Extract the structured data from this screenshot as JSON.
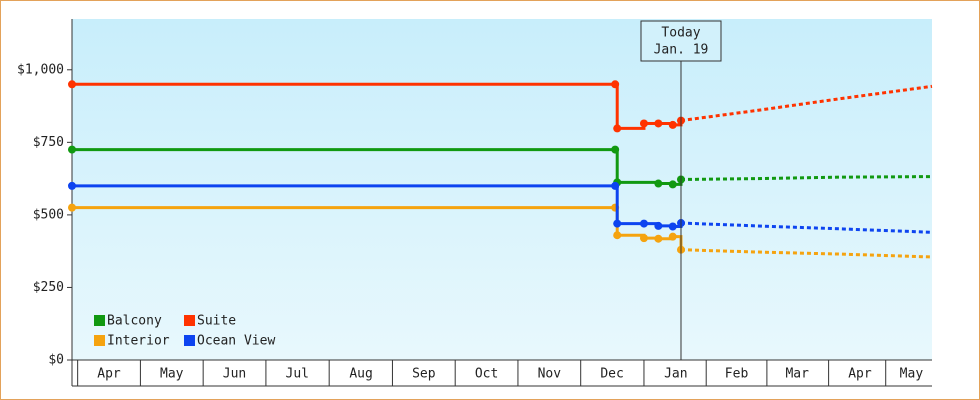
{
  "chart_data": {
    "type": "step-line",
    "xlim": [
      -3,
      415
    ],
    "ylim": [
      0,
      1175
    ],
    "xticks": [
      {
        "value": 15,
        "label": "Apr"
      },
      {
        "value": 45.5,
        "label": "May"
      },
      {
        "value": 76,
        "label": "Jun"
      },
      {
        "value": 106.5,
        "label": "Jul"
      },
      {
        "value": 137.5,
        "label": "Aug"
      },
      {
        "value": 168,
        "label": "Sep"
      },
      {
        "value": 198.5,
        "label": "Oct"
      },
      {
        "value": 229,
        "label": "Nov"
      },
      {
        "value": 259.5,
        "label": "Dec"
      },
      {
        "value": 290.5,
        "label": "Jan"
      },
      {
        "value": 320,
        "label": "Feb"
      },
      {
        "value": 349.5,
        "label": "Mar"
      },
      {
        "value": 380,
        "label": "Apr"
      },
      {
        "value": 405,
        "label": "May"
      }
    ],
    "yticks": [
      {
        "value": 0,
        "label": "$0"
      },
      {
        "value": 250,
        "label": "$250"
      },
      {
        "value": 500,
        "label": "$500"
      },
      {
        "value": 750,
        "label": "$750"
      },
      {
        "value": 1000,
        "label": "$1,000"
      }
    ],
    "legend": "lower left",
    "today": {
      "x": 293,
      "label": [
        "Today",
        "Jan. 19"
      ]
    },
    "series": [
      {
        "name": "Balcony",
        "color": "#119911",
        "x": [
          -3,
          261,
          262,
          282,
          289,
          293
        ],
        "values": [
          725,
          725,
          612,
          608,
          605,
          622
        ],
        "forecast": {
          "x": [
            293,
            330,
            370,
            415
          ],
          "values": [
            622,
            625,
            630,
            632
          ]
        }
      },
      {
        "name": "Suite",
        "color": "#ff3300",
        "x": [
          -3,
          261,
          262,
          275,
          282,
          289,
          293
        ],
        "values": [
          950,
          950,
          798,
          815,
          815,
          810,
          825
        ],
        "forecast": {
          "x": [
            293,
            330,
            370,
            415
          ],
          "values": [
            825,
            860,
            900,
            943
          ]
        }
      },
      {
        "name": "Interior",
        "color": "#f5a30f",
        "x": [
          -3,
          261,
          262,
          275,
          282,
          289,
          293
        ],
        "values": [
          525,
          525,
          430,
          420,
          418,
          425,
          380
        ],
        "forecast": {
          "x": [
            293,
            330,
            370,
            415
          ],
          "values": [
            380,
            372,
            365,
            355
          ]
        }
      },
      {
        "name": "Ocean View",
        "color": "#0d44f0",
        "x": [
          -3,
          261,
          262,
          275,
          282,
          289,
          293
        ],
        "values": [
          600,
          600,
          470,
          470,
          462,
          460,
          472
        ],
        "forecast": {
          "x": [
            293,
            330,
            370,
            415
          ],
          "values": [
            472,
            462,
            452,
            440
          ]
        }
      }
    ]
  }
}
